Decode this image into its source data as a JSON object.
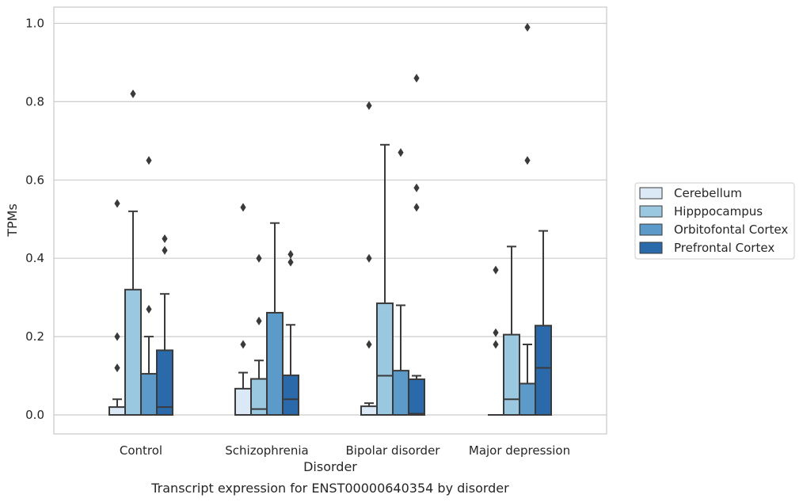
{
  "chart_data": {
    "type": "box",
    "title": "",
    "caption": "Transcript expression for ENST00000640354 by disorder",
    "xlabel": "Disorder",
    "ylabel": "TPMs",
    "ylim": [
      -0.05,
      1.04
    ],
    "yticks": [
      0.0,
      0.2,
      0.4,
      0.6,
      0.8,
      1.0
    ],
    "ytick_labels": [
      "0.0",
      "0.2",
      "0.4",
      "0.6",
      "0.8",
      "1.0"
    ],
    "grid": "horizontal",
    "legend_placement": "right",
    "categories": [
      "Control",
      "Schizophrenia",
      "Bipolar disorder",
      "Major depression"
    ],
    "series": [
      {
        "name": "Cerebellum",
        "color": "#dbe9f6",
        "boxes": [
          {
            "whislo": 0.0,
            "q1": 0.0,
            "med": 0.0,
            "q3": 0.02,
            "whishi": 0.04,
            "fliers": [
              0.54,
              0.2,
              0.12
            ]
          },
          {
            "whislo": 0.0,
            "q1": 0.0,
            "med": 0.0,
            "q3": 0.067,
            "whishi": 0.108,
            "fliers": [
              0.53,
              0.18
            ]
          },
          {
            "whislo": 0.0,
            "q1": 0.0,
            "med": 0.0,
            "q3": 0.022,
            "whishi": 0.03,
            "fliers": [
              0.79,
              0.4,
              0.18
            ]
          },
          {
            "whislo": 0.0,
            "q1": 0.0,
            "med": 0.0,
            "q3": 0.0,
            "whishi": 0.0,
            "fliers": [
              0.37,
              0.21,
              0.18
            ]
          }
        ]
      },
      {
        "name": "Hipppocampus",
        "color": "#9ac8e0",
        "boxes": [
          {
            "whislo": 0.0,
            "q1": 0.0,
            "med": 0.0,
            "q3": 0.32,
            "whishi": 0.52,
            "fliers": [
              0.82
            ]
          },
          {
            "whislo": 0.0,
            "q1": 0.0,
            "med": 0.015,
            "q3": 0.092,
            "whishi": 0.139,
            "fliers": [
              0.4,
              0.24
            ]
          },
          {
            "whislo": 0.0,
            "q1": 0.0,
            "med": 0.1,
            "q3": 0.285,
            "whishi": 0.69,
            "fliers": []
          },
          {
            "whislo": 0.0,
            "q1": 0.0,
            "med": 0.04,
            "q3": 0.205,
            "whishi": 0.43,
            "fliers": []
          }
        ]
      },
      {
        "name": "Orbitofontal Cortex",
        "color": "#5b9ac9",
        "boxes": [
          {
            "whislo": 0.0,
            "q1": 0.0,
            "med": 0.0,
            "q3": 0.105,
            "whishi": 0.2,
            "fliers": [
              0.65,
              0.27
            ]
          },
          {
            "whislo": 0.0,
            "q1": 0.0,
            "med": 0.0,
            "q3": 0.261,
            "whishi": 0.49,
            "fliers": []
          },
          {
            "whislo": 0.0,
            "q1": 0.0,
            "med": 0.0,
            "q3": 0.113,
            "whishi": 0.28,
            "fliers": [
              0.67
            ]
          },
          {
            "whislo": 0.0,
            "q1": 0.0,
            "med": 0.0,
            "q3": 0.08,
            "whishi": 0.18,
            "fliers": [
              0.99,
              0.65
            ]
          }
        ]
      },
      {
        "name": "Prefrontal Cortex",
        "color": "#2b6aaa",
        "boxes": [
          {
            "whislo": 0.0,
            "q1": 0.0,
            "med": 0.02,
            "q3": 0.165,
            "whishi": 0.309,
            "fliers": [
              0.45,
              0.42
            ]
          },
          {
            "whislo": 0.0,
            "q1": 0.0,
            "med": 0.04,
            "q3": 0.101,
            "whishi": 0.23,
            "fliers": [
              0.41,
              0.39
            ]
          },
          {
            "whislo": 0.0,
            "q1": 0.0,
            "med": 0.003,
            "q3": 0.091,
            "whishi": 0.1,
            "fliers": [
              0.86,
              0.58,
              0.53
            ]
          },
          {
            "whislo": 0.0,
            "q1": 0.0,
            "med": 0.12,
            "q3": 0.228,
            "whishi": 0.47,
            "fliers": []
          }
        ]
      }
    ]
  },
  "colors": {
    "background": "#ffffff",
    "frame": "#cccccc",
    "grid": "#cccccc",
    "line": "#3a3a3a",
    "flier": "#3a3a3a",
    "text": "#262626"
  }
}
